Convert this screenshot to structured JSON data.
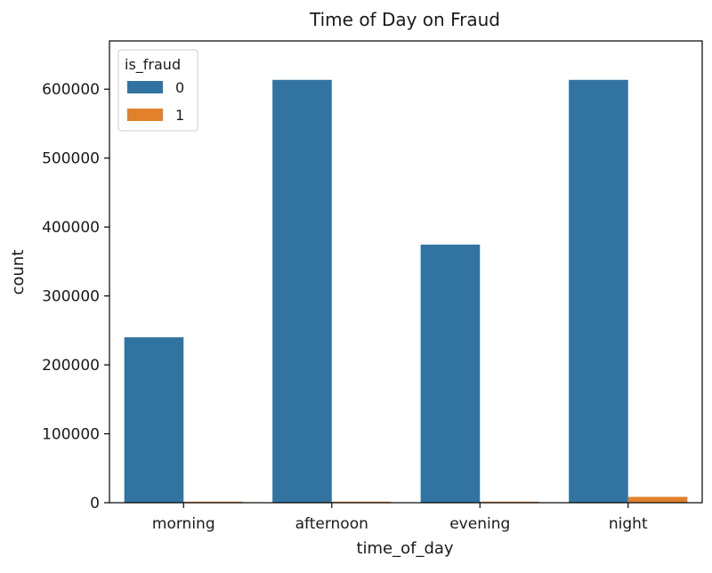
{
  "chart_data": {
    "type": "bar",
    "title": "Time of Day on Fraud",
    "xlabel": "time_of_day",
    "ylabel": "count",
    "categories": [
      "morning",
      "afternoon",
      "evening",
      "night"
    ],
    "series": [
      {
        "name": "0",
        "values": [
          240000,
          613500,
          374500,
          613500
        ],
        "color": "#3274a1"
      },
      {
        "name": "1",
        "values": [
          1500,
          1500,
          1500,
          8500
        ],
        "color": "#e1812c"
      }
    ],
    "ylim": [
      0,
      670000
    ],
    "yticks": [
      0,
      100000,
      200000,
      300000,
      400000,
      500000,
      600000
    ],
    "ytick_labels": [
      "0",
      "100000",
      "200000",
      "300000",
      "400000",
      "500000",
      "600000"
    ],
    "legend": {
      "title": "is_fraud",
      "placement": "top-left"
    },
    "grid": false
  }
}
